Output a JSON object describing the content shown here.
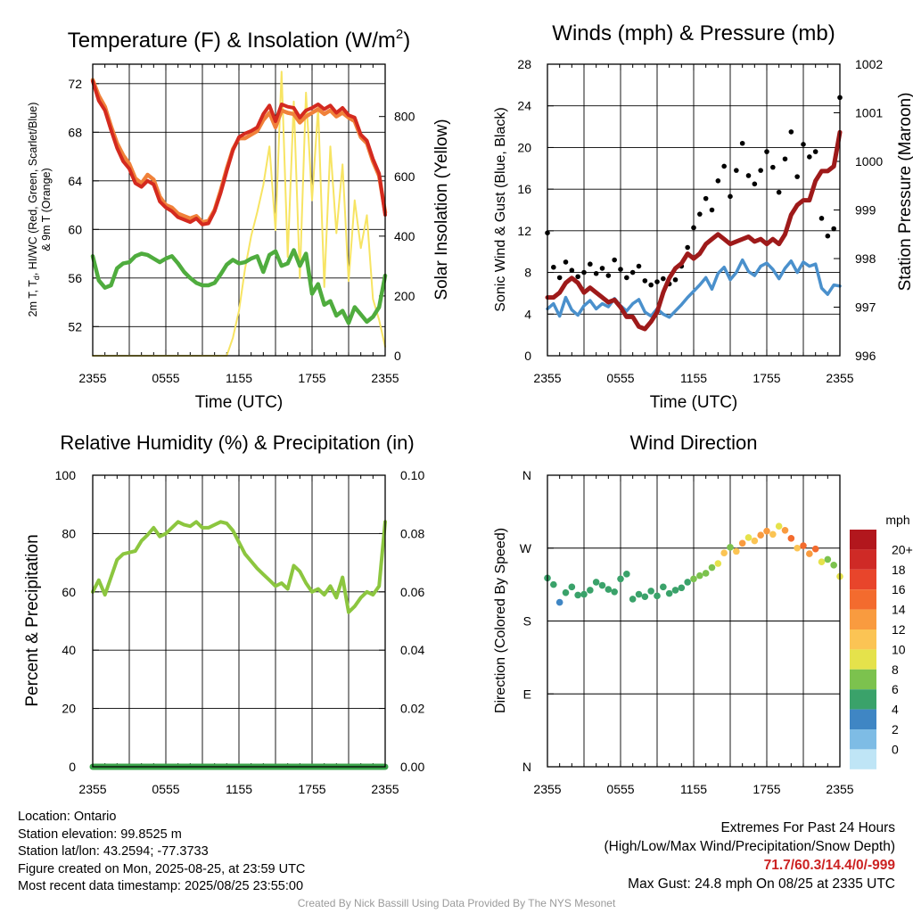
{
  "chart_data": [
    {
      "type": "line",
      "title": "Temperature (F) & Insolation (W/m²)",
      "title_main": "Temperature (F) & Insolation (W/m",
      "title_sup": "2",
      "title_end": ")",
      "xlabel": "Time (UTC)",
      "ylabel_line1_a": "2m T, T",
      "ylabel_sub": "d",
      "ylabel_line1_b": ", HI/WC (Red, Green, Scarlet/Blue)",
      "ylabel_line2": "& 9m T (Orange)",
      "ylabel_right": "Solar Insolation (Yellow)",
      "x_ticks": [
        "2355",
        "0555",
        "1155",
        "1755",
        "2355"
      ],
      "y_ticks": [
        52,
        56,
        60,
        64,
        68,
        72
      ],
      "y_right_ticks": [
        0,
        200,
        400,
        600,
        800
      ],
      "ylim": [
        49.6,
        73.6
      ],
      "ylim_right": [
        0,
        975
      ],
      "x_hours": [
        0,
        0.5,
        1,
        1.5,
        2,
        2.5,
        3,
        3.5,
        4,
        4.5,
        5,
        5.5,
        6,
        6.5,
        7,
        7.5,
        8,
        8.5,
        9,
        9.5,
        10,
        10.5,
        11,
        11.5,
        12,
        12.5,
        13,
        13.5,
        14,
        14.5,
        15,
        15.5,
        16,
        16.5,
        17,
        17.5,
        18,
        18.5,
        19,
        19.5,
        20,
        20.5,
        21,
        21.5,
        22,
        22.5,
        23,
        23.5,
        24
      ],
      "series": [
        {
          "name": "2m T",
          "color": "#d42a1f",
          "values": [
            72.2,
            70.6,
            69.8,
            68.2,
            66.7,
            65.6,
            65.0,
            63.8,
            63.5,
            64.0,
            63.7,
            62.3,
            61.8,
            61.5,
            61.0,
            60.8,
            60.6,
            60.9,
            60.4,
            60.5,
            61.5,
            63.0,
            64.8,
            66.5,
            67.6,
            67.9,
            68.1,
            68.4,
            69.5,
            70.2,
            68.9,
            70.3,
            70.1,
            70.0,
            69.2,
            69.8,
            70.0,
            70.3,
            69.9,
            70.2,
            69.6,
            70.0,
            69.4,
            69.2,
            67.8,
            67.3,
            65.8,
            64.6,
            61.2
          ]
        },
        {
          "name": "9m T",
          "color": "#f0813a",
          "values": [
            72.3,
            71.0,
            70.1,
            68.5,
            67.1,
            66.1,
            65.4,
            64.2,
            63.8,
            64.5,
            64.1,
            62.7,
            62.0,
            61.8,
            61.3,
            61.1,
            60.9,
            61.1,
            60.6,
            60.7,
            61.6,
            63.2,
            65.0,
            66.6,
            67.5,
            67.5,
            67.8,
            68.1,
            69.0,
            69.6,
            68.4,
            69.8,
            69.6,
            69.5,
            68.8,
            69.3,
            69.6,
            69.9,
            69.5,
            69.8,
            69.3,
            69.6,
            69.2,
            68.9,
            67.6,
            67.1,
            65.6,
            64.4,
            61.4
          ]
        },
        {
          "name": "Td",
          "color": "#4fac3e",
          "values": [
            57.8,
            55.8,
            55.2,
            55.4,
            56.8,
            57.2,
            57.3,
            57.8,
            58.0,
            57.9,
            57.6,
            57.3,
            57.6,
            57.8,
            57.2,
            56.5,
            56.0,
            55.6,
            55.4,
            55.4,
            55.6,
            56.3,
            57.1,
            57.5,
            57.2,
            57.3,
            57.6,
            57.8,
            56.5,
            57.9,
            58.2,
            57.0,
            57.2,
            58.3,
            57.0,
            58.0,
            54.7,
            55.5,
            53.8,
            54.1,
            52.9,
            53.3,
            52.3,
            53.6,
            53.0,
            52.4,
            52.8,
            53.6,
            56.2
          ]
        },
        {
          "name": "Solar Insolation",
          "color": "#f7e463",
          "values": [
            0,
            0,
            0,
            0,
            0,
            0,
            0,
            0,
            0,
            0,
            0,
            0,
            0,
            0,
            0,
            0,
            0,
            0,
            0,
            0,
            0,
            0,
            0,
            60,
            150,
            290,
            400,
            480,
            570,
            700,
            420,
            950,
            330,
            850,
            260,
            880,
            520,
            830,
            230,
            700,
            410,
            640,
            250,
            520,
            360,
            470,
            190,
            120,
            30
          ]
        }
      ]
    },
    {
      "type": "scatter",
      "title": "Winds (mph) & Pressure (mb)",
      "xlabel": "Time (UTC)",
      "ylabel": "Sonic Wind & Gust (Blue, Black)",
      "ylabel_right": "Station Pressure (Maroon)",
      "x_ticks": [
        "2355",
        "0555",
        "1155",
        "1755",
        "2355"
      ],
      "y_ticks": [
        0,
        4,
        8,
        12,
        16,
        20,
        24,
        28
      ],
      "y_right_ticks": [
        996,
        997,
        998,
        999,
        1000,
        1001,
        1002
      ],
      "ylim": [
        0,
        28
      ],
      "ylim_right": [
        996,
        1002
      ],
      "x_hours": [
        0,
        0.5,
        1,
        1.5,
        2,
        2.5,
        3,
        3.5,
        4,
        4.5,
        5,
        5.5,
        6,
        6.5,
        7,
        7.5,
        8,
        8.5,
        9,
        9.5,
        10,
        10.5,
        11,
        11.5,
        12,
        12.5,
        13,
        13.5,
        14,
        14.5,
        15,
        15.5,
        16,
        16.5,
        17,
        17.5,
        18,
        18.5,
        19,
        19.5,
        20,
        20.5,
        21,
        21.5,
        22,
        22.5,
        23,
        23.5,
        24
      ],
      "series": [
        {
          "name": "Sonic Wind",
          "color": "#4a90cc",
          "values": [
            4.5,
            5.0,
            3.8,
            5.6,
            4.4,
            3.9,
            4.8,
            5.3,
            4.5,
            5.0,
            4.7,
            5.5,
            4.8,
            4.3,
            5.0,
            5.4,
            4.2,
            3.8,
            4.5,
            4.0,
            3.7,
            4.3,
            4.9,
            5.6,
            6.2,
            6.8,
            7.5,
            6.4,
            7.9,
            8.5,
            7.3,
            8.0,
            9.2,
            8.1,
            7.7,
            8.6,
            8.9,
            8.3,
            7.4,
            8.4,
            9.1,
            8.0,
            9.0,
            8.6,
            8.8,
            6.5,
            5.9,
            6.8,
            6.7
          ]
        },
        {
          "name": "Gust",
          "color": "#000000",
          "values": [
            11.8,
            8.5,
            7.5,
            9.0,
            8.2,
            7.6,
            8.0,
            8.8,
            7.9,
            8.4,
            7.7,
            9.2,
            8.3,
            7.5,
            8.0,
            8.6,
            7.2,
            6.8,
            7.1,
            7.4,
            6.9,
            7.3,
            8.6,
            10.4,
            12.3,
            13.6,
            15.1,
            14.0,
            16.8,
            18.2,
            15.3,
            17.8,
            20.4,
            17.3,
            16.5,
            17.8,
            19.6,
            18.1,
            15.7,
            18.9,
            21.5,
            17.2,
            20.3,
            19.1,
            19.6,
            13.2,
            11.5,
            12.2,
            24.8
          ]
        },
        {
          "name": "Station Pressure",
          "color": "#9e1a1a",
          "values": [
            997.2,
            997.2,
            997.3,
            997.5,
            997.6,
            997.5,
            997.3,
            997.4,
            997.3,
            997.2,
            997.1,
            997.15,
            997.0,
            996.8,
            996.8,
            996.6,
            996.55,
            996.7,
            996.9,
            997.3,
            997.6,
            997.8,
            997.9,
            998.1,
            998.0,
            998.1,
            998.3,
            998.4,
            998.5,
            998.4,
            998.3,
            998.35,
            998.4,
            998.45,
            998.35,
            998.4,
            998.3,
            998.4,
            998.3,
            998.5,
            998.9,
            999.1,
            999.2,
            999.2,
            999.6,
            999.8,
            999.8,
            999.9,
            1000.6
          ]
        }
      ]
    },
    {
      "type": "line",
      "title": "Relative Humidity (%) & Precipitation (in)",
      "xlabel": "",
      "ylabel": "Percent & Precipitation",
      "x_ticks": [
        "2355",
        "0555",
        "1155",
        "1755",
        "2355"
      ],
      "y_ticks": [
        0,
        20,
        40,
        60,
        80,
        100
      ],
      "y_right_ticks": [
        "0.00",
        "0.02",
        "0.04",
        "0.06",
        "0.08",
        "0.10"
      ],
      "ylim": [
        0,
        100
      ],
      "ylim_right": [
        0,
        0.1
      ],
      "x_hours": [
        0,
        0.5,
        1,
        1.5,
        2,
        2.5,
        3,
        3.5,
        4,
        4.5,
        5,
        5.5,
        6,
        6.5,
        7,
        7.5,
        8,
        8.5,
        9,
        9.5,
        10,
        10.5,
        11,
        11.5,
        12,
        12.5,
        13,
        13.5,
        14,
        14.5,
        15,
        15.5,
        16,
        16.5,
        17,
        17.5,
        18,
        18.5,
        19,
        19.5,
        20,
        20.5,
        21,
        21.5,
        22,
        22.5,
        23,
        23.5,
        24
      ],
      "series": [
        {
          "name": "Relative Humidity",
          "color": "#8cc63f",
          "values": [
            60,
            64,
            59,
            65,
            71,
            73,
            73.5,
            74,
            77.5,
            79.5,
            82,
            79,
            80,
            82,
            84,
            83,
            82.5,
            84,
            82,
            82,
            83,
            84,
            83.5,
            81,
            77,
            73,
            70.5,
            68,
            66,
            64,
            62,
            63,
            61,
            69,
            67,
            63,
            60,
            61,
            59,
            62,
            58,
            65,
            53,
            55,
            58,
            60,
            59,
            62,
            84
          ]
        },
        {
          "name": "Precipitation",
          "color": "#3aa34a",
          "values": [
            0,
            0,
            0,
            0,
            0,
            0,
            0,
            0,
            0,
            0,
            0,
            0,
            0,
            0,
            0,
            0,
            0,
            0,
            0,
            0,
            0,
            0,
            0,
            0,
            0,
            0,
            0,
            0,
            0,
            0,
            0,
            0,
            0,
            0,
            0,
            0,
            0,
            0,
            0,
            0,
            0,
            0,
            0,
            0,
            0,
            0,
            0,
            0,
            0
          ]
        }
      ]
    },
    {
      "type": "scatter",
      "title": "Wind Direction",
      "ylabel": "Direction (Colored By Speed)",
      "x_ticks": [
        "2355",
        "0555",
        "1155",
        "1755",
        "2355"
      ],
      "y_ticks": [
        "N",
        "E",
        "S",
        "W",
        "N"
      ],
      "ylim": [
        0,
        360
      ],
      "x_hours": [
        0,
        0.5,
        1,
        1.5,
        2,
        2.5,
        3,
        3.5,
        4,
        4.5,
        5,
        5.5,
        6,
        6.5,
        7,
        7.5,
        8,
        8.5,
        9,
        9.5,
        10,
        10.5,
        11,
        11.5,
        12,
        12.5,
        13,
        13.5,
        14,
        14.5,
        15,
        15.5,
        16,
        16.5,
        17,
        17.5,
        18,
        18.5,
        19,
        19.5,
        20,
        20.5,
        21,
        21.5,
        22,
        22.5,
        23,
        23.5,
        24
      ],
      "direction_deg": [
        233,
        225,
        203,
        215,
        222,
        212,
        213,
        218,
        228,
        224,
        219,
        216,
        232,
        238,
        207,
        213,
        210,
        217,
        211,
        222,
        214,
        218,
        221,
        228,
        232,
        236,
        239,
        246,
        251,
        264,
        271,
        266,
        276,
        283,
        279,
        286,
        291,
        287,
        297,
        292,
        282,
        270,
        273,
        263,
        269,
        253,
        256,
        249,
        235
      ],
      "speed_mph": [
        4,
        5,
        2,
        4,
        4,
        4,
        4,
        4,
        4,
        4,
        4,
        4,
        5,
        4,
        4,
        4,
        4,
        4,
        4,
        4,
        4,
        4,
        4,
        5,
        6,
        6,
        7,
        6,
        8,
        10,
        7,
        10,
        12,
        8,
        11,
        12,
        12,
        10,
        8,
        13,
        14,
        10,
        14,
        12,
        14,
        8,
        6,
        7,
        9
      ],
      "colorbar_label": "mph",
      "colorbar_ticks": [
        "20+",
        "18",
        "16",
        "14",
        "12",
        "10",
        "8",
        "6",
        "4",
        "2",
        "0"
      ],
      "colorbar_colors": [
        "#b2171d",
        "#cf2a26",
        "#e8452b",
        "#f36b2e",
        "#f99b3f",
        "#fbc454",
        "#e5e24b",
        "#7cc24e",
        "#3aa26a",
        "#3f86c4",
        "#7ebce5",
        "#bfe5f6"
      ]
    }
  ],
  "info": {
    "location": "Location: Ontario",
    "elevation": "Station elevation: 99.8525 m",
    "latlon": "Station lat/lon: 43.2594; -77.3733",
    "created": "Figure created on Mon, 2025-08-25, at 23:59 UTC",
    "recent": "Most recent data timestamp: 2025/08/25 23:55:00"
  },
  "extremes": {
    "title": "Extremes For Past 24 Hours",
    "subtitle": "(High/Low/Max Wind/Precipitation/Snow Depth)",
    "values": "71.7/60.3/14.4/0/-999",
    "max_gust": "Max Gust: 24.8 mph On 08/25 at 2335 UTC"
  },
  "credit": "Created By Nick Bassill Using Data Provided By The NYS Mesonet"
}
